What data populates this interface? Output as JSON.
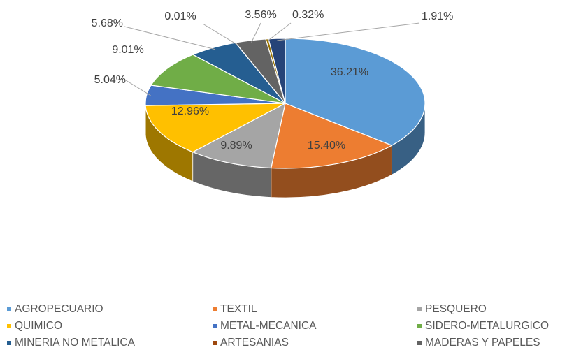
{
  "chart_data": {
    "type": "pie3d",
    "categories": [
      "AGROPECUARIO",
      "TEXTIL",
      "PESQUERO",
      "QUIMICO",
      "METAL-MECANICA",
      "SIDERO-METALURGICO",
      "MINERIA NO METALICA",
      "ARTESANIAS",
      "MADERAS Y PAPELES",
      null,
      null
    ],
    "values": [
      36.21,
      15.4,
      9.89,
      12.96,
      5.04,
      9.01,
      5.68,
      0.01,
      3.56,
      0.32,
      1.91
    ],
    "value_labels": [
      "36.21%",
      "15.40%",
      "9.89%",
      "12.96%",
      "5.04%",
      "9.01%",
      "5.68%",
      "0.01%",
      "3.56%",
      "0.32%",
      "1.91%"
    ],
    "colors": [
      "#5b9bd5",
      "#ed7d31",
      "#a5a5a5",
      "#ffc000",
      "#4472c4",
      "#70ad47",
      "#255e91",
      "#9e480e",
      "#636363",
      "#997300",
      "#264478"
    ],
    "legend": "bottom"
  }
}
